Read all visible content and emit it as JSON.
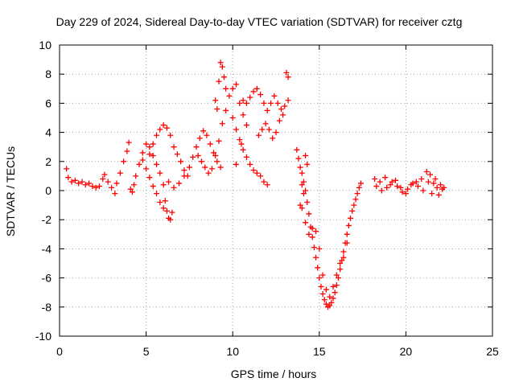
{
  "chart_data": {
    "type": "scatter",
    "title": "Day 229 of 2024, Sidereal Day-to-day VTEC variation (SDTVAR) for receiver cztg",
    "xlabel": "GPS time / hours",
    "ylabel": "SDTVAR / TECUs",
    "xlim": [
      0,
      25
    ],
    "ylim": [
      -10,
      10
    ],
    "xticks": [
      0,
      5,
      10,
      15,
      20,
      25
    ],
    "yticks": [
      -10,
      -8,
      -6,
      -4,
      -2,
      0,
      2,
      4,
      6,
      8,
      10
    ],
    "grid": true,
    "marker": "+",
    "color": "#ff0000",
    "series": [
      {
        "name": "SDTVAR",
        "points": [
          [
            0.4,
            1.5
          ],
          [
            0.5,
            0.9
          ],
          [
            0.7,
            0.6
          ],
          [
            0.9,
            0.7
          ],
          [
            1.1,
            0.5
          ],
          [
            1.3,
            0.6
          ],
          [
            1.5,
            0.4
          ],
          [
            1.7,
            0.5
          ],
          [
            1.9,
            0.3
          ],
          [
            2.1,
            0.2
          ],
          [
            2.3,
            0.3
          ],
          [
            2.5,
            0.8
          ],
          [
            2.6,
            1.1
          ],
          [
            2.8,
            0.6
          ],
          [
            3.0,
            0.2
          ],
          [
            3.2,
            -0.2
          ],
          [
            3.3,
            0.5
          ],
          [
            3.5,
            1.2
          ],
          [
            3.7,
            2.0
          ],
          [
            3.9,
            2.7
          ],
          [
            4.0,
            3.3
          ],
          [
            4.1,
            0.1
          ],
          [
            4.2,
            -0.1
          ],
          [
            4.3,
            0.4
          ],
          [
            4.4,
            1.0
          ],
          [
            4.6,
            1.8
          ],
          [
            4.8,
            2.6
          ],
          [
            5.0,
            3.2
          ],
          [
            5.2,
            3.0
          ],
          [
            5.4,
            2.4
          ],
          [
            5.6,
            1.8
          ],
          [
            5.8,
            1.2
          ],
          [
            6.0,
            0.4
          ],
          [
            6.1,
            -0.7
          ],
          [
            6.2,
            -1.4
          ],
          [
            6.3,
            -1.9
          ],
          [
            6.4,
            -2.0
          ],
          [
            6.5,
            -1.5
          ],
          [
            4.8,
            2.1
          ],
          [
            5.0,
            1.5
          ],
          [
            5.2,
            0.9
          ],
          [
            5.4,
            0.3
          ],
          [
            5.6,
            -0.2
          ],
          [
            5.8,
            -0.8
          ],
          [
            6.0,
            -1.2
          ],
          [
            5.2,
            2.5
          ],
          [
            5.4,
            3.2
          ],
          [
            5.6,
            3.8
          ],
          [
            5.8,
            4.2
          ],
          [
            6.0,
            4.5
          ],
          [
            6.2,
            4.3
          ],
          [
            6.4,
            3.8
          ],
          [
            6.6,
            3.0
          ],
          [
            6.8,
            2.5
          ],
          [
            7.0,
            2.0
          ],
          [
            7.2,
            1.4
          ],
          [
            7.4,
            1.0
          ],
          [
            6.3,
            0.6
          ],
          [
            6.6,
            0.2
          ],
          [
            6.9,
            0.5
          ],
          [
            7.2,
            1.0
          ],
          [
            7.5,
            1.6
          ],
          [
            7.7,
            2.3
          ],
          [
            7.9,
            3.0
          ],
          [
            8.1,
            3.6
          ],
          [
            8.3,
            4.1
          ],
          [
            8.5,
            3.8
          ],
          [
            8.7,
            3.2
          ],
          [
            8.9,
            2.6
          ],
          [
            9.1,
            2.0
          ],
          [
            9.3,
            1.6
          ],
          [
            8.0,
            2.4
          ],
          [
            8.2,
            2.0
          ],
          [
            8.4,
            1.6
          ],
          [
            8.6,
            1.2
          ],
          [
            8.8,
            1.5
          ],
          [
            9.0,
            2.4
          ],
          [
            9.2,
            3.4
          ],
          [
            9.4,
            4.6
          ],
          [
            9.6,
            5.5
          ],
          [
            9.8,
            6.5
          ],
          [
            10.0,
            7.0
          ],
          [
            10.2,
            7.3
          ],
          [
            10.4,
            6.0
          ],
          [
            10.6,
            5.2
          ],
          [
            10.8,
            4.5
          ],
          [
            9.3,
            8.8
          ],
          [
            9.4,
            8.5
          ],
          [
            9.5,
            7.8
          ],
          [
            9.6,
            7.0
          ],
          [
            9.2,
            7.5
          ],
          [
            9.0,
            6.2
          ],
          [
            9.1,
            5.6
          ],
          [
            10.0,
            5.0
          ],
          [
            10.2,
            4.2
          ],
          [
            10.4,
            3.5
          ],
          [
            10.5,
            3.2
          ],
          [
            10.6,
            2.8
          ],
          [
            10.8,
            2.3
          ],
          [
            11.0,
            1.8
          ],
          [
            11.2,
            1.4
          ],
          [
            11.4,
            1.2
          ],
          [
            11.6,
            1.0
          ],
          [
            11.8,
            0.6
          ],
          [
            12.0,
            0.4
          ],
          [
            10.2,
            1.8
          ],
          [
            10.6,
            6.2
          ],
          [
            10.8,
            6.0
          ],
          [
            11.0,
            6.4
          ],
          [
            11.2,
            6.8
          ],
          [
            11.4,
            7.0
          ],
          [
            11.6,
            6.6
          ],
          [
            11.8,
            6.0
          ],
          [
            12.0,
            5.5
          ],
          [
            12.2,
            6.0
          ],
          [
            12.4,
            6.5
          ],
          [
            12.6,
            6.0
          ],
          [
            12.8,
            5.6
          ],
          [
            13.0,
            5.8
          ],
          [
            13.2,
            6.2
          ],
          [
            13.1,
            8.1
          ],
          [
            13.2,
            7.8
          ],
          [
            11.5,
            3.8
          ],
          [
            11.7,
            4.2
          ],
          [
            11.9,
            4.6
          ],
          [
            12.1,
            4.2
          ],
          [
            12.3,
            3.6
          ],
          [
            12.5,
            4.0
          ],
          [
            12.7,
            4.8
          ],
          [
            12.9,
            5.2
          ],
          [
            13.7,
            2.8
          ],
          [
            13.8,
            2.2
          ],
          [
            13.9,
            1.6
          ],
          [
            14.0,
            1.2
          ],
          [
            14.1,
            0.6
          ],
          [
            14.2,
            0.0
          ],
          [
            14.3,
            -0.8
          ],
          [
            14.4,
            -1.6
          ],
          [
            14.5,
            -2.5
          ],
          [
            14.6,
            -3.2
          ],
          [
            14.7,
            -3.9
          ],
          [
            14.8,
            -4.6
          ],
          [
            14.9,
            -5.3
          ],
          [
            15.0,
            -6.0
          ],
          [
            15.1,
            -6.6
          ],
          [
            15.2,
            -7.1
          ],
          [
            15.3,
            -7.5
          ],
          [
            15.4,
            -7.8
          ],
          [
            15.5,
            -8.0
          ],
          [
            15.6,
            -7.9
          ],
          [
            15.7,
            -7.7
          ],
          [
            15.8,
            -7.4
          ],
          [
            15.9,
            -7.0
          ],
          [
            16.0,
            -6.5
          ],
          [
            16.1,
            -6.0
          ],
          [
            16.2,
            -5.4
          ],
          [
            16.3,
            -4.8
          ],
          [
            16.4,
            -4.2
          ],
          [
            16.5,
            -3.6
          ],
          [
            16.6,
            -3.0
          ],
          [
            16.7,
            -2.4
          ],
          [
            16.8,
            -1.9
          ],
          [
            16.9,
            -1.4
          ],
          [
            17.0,
            -1.0
          ],
          [
            17.1,
            -0.6
          ],
          [
            17.2,
            -0.2
          ],
          [
            17.3,
            0.2
          ],
          [
            17.4,
            0.5
          ],
          [
            14.0,
            -1.2
          ],
          [
            14.2,
            -2.2
          ],
          [
            14.4,
            -3.0
          ],
          [
            14.6,
            -2.6
          ],
          [
            14.8,
            -2.8
          ],
          [
            15.0,
            -4.0
          ],
          [
            15.2,
            -5.8
          ],
          [
            15.4,
            -6.8
          ],
          [
            15.6,
            -7.3
          ],
          [
            15.8,
            -6.6
          ],
          [
            16.0,
            -5.8
          ],
          [
            16.2,
            -5.0
          ],
          [
            16.4,
            -4.6
          ],
          [
            16.6,
            -3.6
          ],
          [
            14.2,
            2.4
          ],
          [
            14.3,
            1.8
          ],
          [
            14.0,
            0.4
          ],
          [
            14.1,
            -0.2
          ],
          [
            13.9,
            -1.0
          ],
          [
            18.2,
            0.8
          ],
          [
            18.5,
            0.6
          ],
          [
            18.8,
            0.9
          ],
          [
            19.1,
            0.4
          ],
          [
            19.4,
            0.7
          ],
          [
            19.7,
            0.2
          ],
          [
            20.0,
            -0.2
          ],
          [
            20.3,
            0.4
          ],
          [
            20.6,
            0.6
          ],
          [
            20.9,
            0.8
          ],
          [
            21.2,
            1.3
          ],
          [
            21.4,
            1.1
          ],
          [
            21.6,
            0.5
          ],
          [
            21.8,
            0.2
          ],
          [
            22.0,
            0.4
          ],
          [
            22.2,
            0.2
          ],
          [
            18.3,
            0.3
          ],
          [
            18.6,
            0.0
          ],
          [
            18.9,
            0.2
          ],
          [
            19.2,
            0.6
          ],
          [
            19.5,
            0.3
          ],
          [
            19.8,
            -0.1
          ],
          [
            20.1,
            0.1
          ],
          [
            20.4,
            0.5
          ],
          [
            20.7,
            0.3
          ],
          [
            21.0,
            0.0
          ],
          [
            21.3,
            0.6
          ],
          [
            21.5,
            -0.2
          ],
          [
            21.7,
            0.8
          ],
          [
            21.9,
            -0.3
          ],
          [
            22.1,
            0.1
          ]
        ]
      }
    ]
  }
}
